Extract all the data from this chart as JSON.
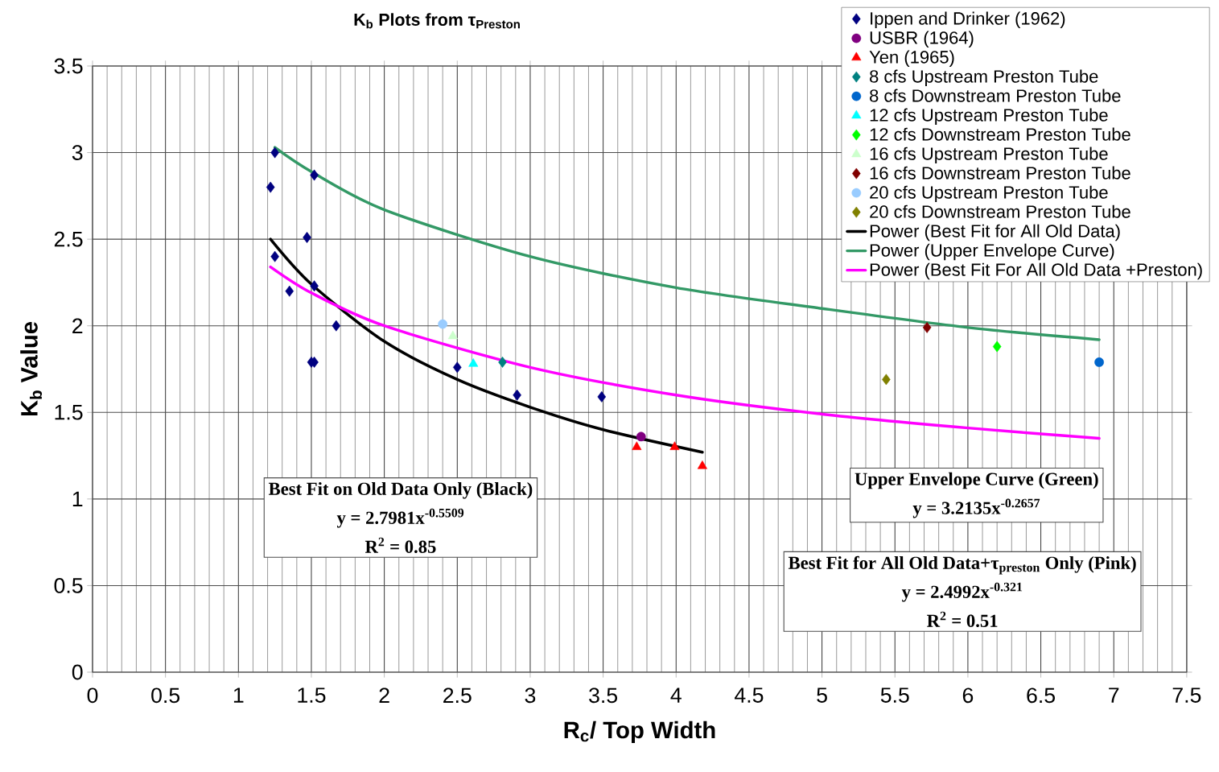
{
  "chart_data": {
    "type": "scatter",
    "title": "K$_{b}$ Plots from τ$_{Preston}$",
    "xlabel": "R$_{c}$/ Top Width",
    "ylabel": "K$_{b}$ Value",
    "xlim": [
      0,
      7.5
    ],
    "ylim": [
      0,
      3.5
    ],
    "xticks": [
      0,
      0.5,
      1,
      1.5,
      2,
      2.5,
      3,
      3.5,
      4,
      4.5,
      5,
      5.5,
      6,
      6.5,
      7,
      7.5
    ],
    "yticks": [
      0,
      0.5,
      1,
      1.5,
      2,
      2.5,
      3,
      3.5
    ],
    "grid": true,
    "legend": "top right",
    "series": [
      {
        "name": "Ippen and Drinker (1962)",
        "marker": "diamond",
        "color": "#000080",
        "x": [
          1.25,
          1.22,
          1.52,
          1.47,
          1.25,
          1.35,
          1.52,
          1.67,
          1.5,
          1.52,
          2.5,
          2.91,
          3.49
        ],
        "values": [
          3.0,
          2.8,
          2.87,
          2.51,
          2.4,
          2.2,
          2.23,
          2.0,
          1.79,
          1.79,
          1.76,
          1.6,
          1.59
        ]
      },
      {
        "name": "USBR (1964)",
        "marker": "circle",
        "color": "#800080",
        "x": [
          3.76
        ],
        "values": [
          1.36
        ]
      },
      {
        "name": "Yen (1965)",
        "marker": "triangle",
        "color": "#ff0000",
        "x": [
          3.73,
          3.99,
          4.18
        ],
        "values": [
          1.3,
          1.3,
          1.19
        ]
      },
      {
        "name": "8 cfs Upstream Preston Tube",
        "marker": "diamond",
        "color": "#008080",
        "x": [
          2.81
        ],
        "values": [
          1.79
        ]
      },
      {
        "name": "8 cfs Downstream Preston Tube",
        "marker": "circle",
        "color": "#0066cc",
        "x": [
          6.9
        ],
        "values": [
          1.79
        ]
      },
      {
        "name": "12 cfs Upstream Preston Tube",
        "marker": "triangle",
        "color": "#00ffff",
        "x": [
          2.61
        ],
        "values": [
          1.78
        ]
      },
      {
        "name": "12 cfs Downstream Preston Tube",
        "marker": "diamond",
        "color": "#00ff00",
        "x": [
          6.2
        ],
        "values": [
          1.88
        ]
      },
      {
        "name": "16 cfs Upstream Preston Tube",
        "marker": "triangle",
        "color": "#ccffcc",
        "x": [
          2.47
        ],
        "values": [
          1.94
        ]
      },
      {
        "name": "16 cfs Downstream Preston Tube",
        "marker": "diamond",
        "color": "#800000",
        "x": [
          5.72
        ],
        "values": [
          1.99
        ]
      },
      {
        "name": "20 cfs Upstream Preston Tube",
        "marker": "circle",
        "color": "#99ccff",
        "x": [
          2.4
        ],
        "values": [
          2.01
        ]
      },
      {
        "name": "20 cfs Downstream Preston Tube",
        "marker": "diamond",
        "color": "#808000",
        "x": [
          5.44
        ],
        "values": [
          1.69
        ]
      },
      {
        "name": "Power (Best Fit for All Old Data)",
        "type": "line",
        "line_style": "solid",
        "color": "#000000",
        "x": [
          1.22,
          1.5,
          2,
          2.5,
          3,
          3.5,
          4.18
        ],
        "values": [
          2.5,
          2.24,
          1.91,
          1.69,
          1.53,
          1.4,
          1.27
        ]
      },
      {
        "name": "Power (Upper Envelope Curve)",
        "type": "line",
        "line_style": "solid",
        "color": "#339966",
        "x": [
          1.25,
          1.5,
          2,
          3,
          4,
          5,
          6,
          6.9
        ],
        "values": [
          3.03,
          2.89,
          2.67,
          2.4,
          2.22,
          2.1,
          1.99,
          1.92
        ]
      },
      {
        "name": "Power (Best Fit For All Old Data +Preston)",
        "type": "line",
        "line_style": "solid",
        "color": "#ff00ff",
        "x": [
          1.22,
          1.5,
          2,
          3,
          4,
          5,
          6,
          6.9
        ],
        "values": [
          2.34,
          2.19,
          2.0,
          1.76,
          1.6,
          1.49,
          1.41,
          1.35
        ]
      }
    ],
    "annotations": [
      "Best Fit on Old Data Only (Black)",
      "y = 2.7981x$^{-0.5509}$",
      "R$^{2}$ = 0.85",
      "Upper Envelope Curve (Green)",
      "y = 3.2135x$^{-0.2657}$",
      "Best Fit for All Old Data+τ$_{preston}$ Only (Pink)",
      "y = 2.4992x$^{-0.321}$",
      "R$^{2}$ = 0.51"
    ]
  }
}
